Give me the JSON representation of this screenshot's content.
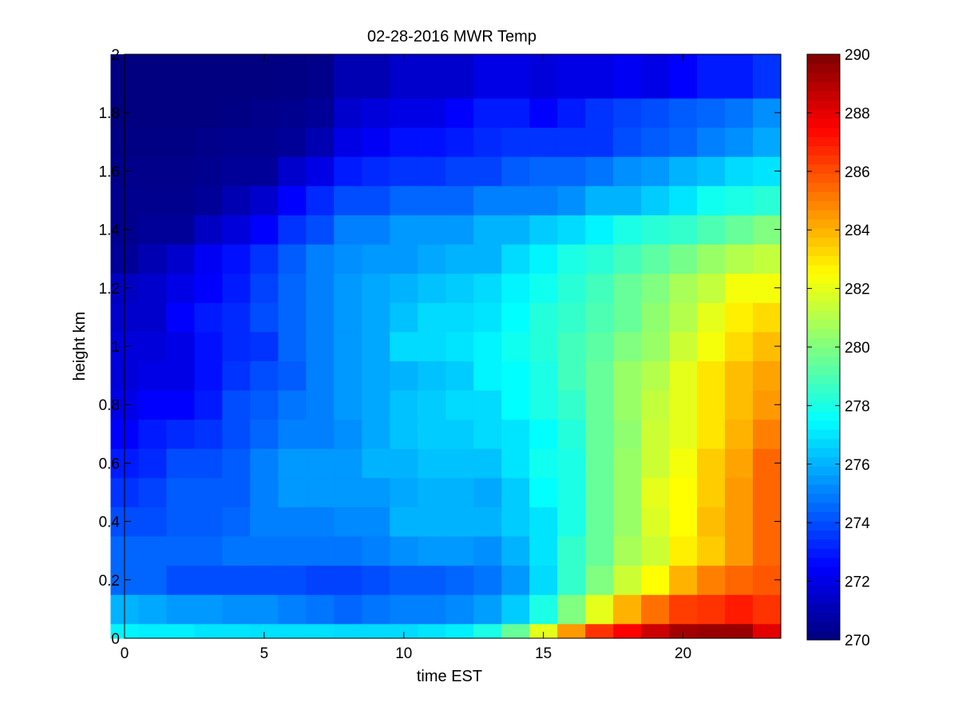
{
  "chart_data": {
    "type": "heatmap",
    "title": "02-28-2016 MWR Temp",
    "xlabel": "time EST",
    "ylabel": "height km",
    "xlim": [
      0,
      23.5
    ],
    "ylim": [
      0,
      2
    ],
    "x_ticks": [
      "0",
      "5",
      "10",
      "15",
      "20"
    ],
    "y_ticks": [
      "0",
      "0.2",
      "0.4",
      "0.6",
      "0.8",
      "1",
      "1.2",
      "1.4",
      "1.6",
      "1.8",
      "2"
    ],
    "colorbar": {
      "colormap": "jet",
      "range": [
        270,
        290
      ],
      "ticks": [
        "270",
        "272",
        "274",
        "276",
        "278",
        "280",
        "282",
        "284",
        "286",
        "288",
        "290"
      ]
    },
    "x_centers": [
      0,
      1,
      2,
      3,
      4,
      5,
      6,
      7,
      8,
      9,
      10,
      11,
      12,
      13,
      14,
      15,
      16,
      17,
      18,
      19,
      20,
      21,
      22,
      23
    ],
    "y_edges": [
      0,
      0.05,
      0.15,
      0.25,
      0.35,
      0.45,
      0.55,
      0.65,
      0.75,
      0.85,
      0.95,
      1.05,
      1.15,
      1.25,
      1.35,
      1.45,
      1.55,
      1.65,
      1.75,
      1.85,
      2.0
    ],
    "z": [
      [
        277.3,
        277.2,
        277.2,
        277.0,
        277.0,
        276.9,
        276.9,
        276.9,
        276.8,
        276.8,
        276.8,
        277.0,
        277.2,
        278.0,
        279.5,
        282.0,
        284.5,
        286.5,
        287.5,
        288.5,
        289.3,
        289.5,
        289.5,
        288.0
      ],
      [
        276.0,
        275.8,
        275.5,
        275.5,
        275.3,
        275.3,
        275.0,
        274.8,
        274.5,
        274.8,
        275.0,
        275.0,
        275.2,
        275.6,
        276.5,
        278.0,
        280.0,
        282.0,
        284.0,
        285.3,
        286.3,
        286.5,
        287.0,
        286.5
      ],
      [
        274.5,
        274.5,
        274.0,
        274.0,
        274.0,
        274.0,
        274.0,
        273.8,
        273.8,
        274.0,
        274.3,
        274.3,
        274.5,
        274.8,
        275.5,
        276.8,
        278.5,
        280.0,
        281.5,
        282.5,
        284.0,
        285.0,
        285.5,
        285.8
      ],
      [
        274.5,
        274.5,
        274.5,
        274.5,
        274.8,
        274.8,
        274.8,
        274.8,
        274.8,
        275.0,
        275.3,
        275.5,
        275.5,
        275.3,
        276.0,
        277.0,
        278.5,
        279.5,
        280.8,
        281.5,
        282.8,
        283.5,
        284.5,
        285.5
      ],
      [
        274.0,
        274.0,
        274.3,
        274.3,
        274.5,
        275.0,
        275.0,
        275.0,
        275.2,
        275.2,
        276.0,
        276.0,
        276.0,
        276.0,
        276.5,
        277.0,
        278.0,
        279.5,
        280.5,
        281.8,
        282.5,
        283.8,
        284.5,
        285.5
      ],
      [
        273.5,
        273.8,
        274.3,
        274.3,
        274.3,
        275.0,
        275.5,
        275.5,
        275.5,
        275.5,
        275.8,
        276.0,
        276.0,
        275.8,
        276.5,
        277.5,
        278.0,
        279.5,
        280.5,
        282.0,
        282.5,
        283.5,
        284.5,
        285.5
      ],
      [
        273.0,
        273.3,
        274.0,
        274.0,
        274.3,
        275.0,
        275.5,
        275.5,
        275.5,
        276.0,
        276.0,
        276.3,
        276.3,
        276.3,
        277.0,
        277.8,
        278.0,
        279.5,
        280.5,
        281.5,
        282.3,
        283.5,
        284.3,
        285.5
      ],
      [
        272.5,
        273.0,
        273.3,
        273.5,
        274.0,
        274.5,
        275.0,
        275.0,
        275.3,
        275.8,
        276.3,
        276.5,
        276.5,
        276.8,
        277.0,
        277.5,
        278.2,
        279.5,
        280.3,
        281.5,
        282.0,
        283.0,
        284.0,
        285.0
      ],
      [
        272.0,
        272.5,
        272.5,
        273.0,
        274.0,
        274.3,
        274.8,
        275.0,
        275.5,
        275.8,
        276.3,
        276.5,
        276.8,
        276.8,
        277.5,
        278.0,
        278.5,
        279.5,
        280.5,
        281.3,
        282.0,
        283.0,
        283.8,
        284.5
      ],
      [
        271.8,
        272.0,
        272.0,
        272.8,
        273.5,
        274.0,
        274.3,
        275.0,
        275.5,
        275.8,
        276.0,
        276.3,
        276.5,
        277.3,
        277.5,
        278.0,
        278.8,
        279.5,
        280.5,
        281.0,
        282.0,
        283.0,
        283.8,
        284.3
      ],
      [
        271.8,
        271.8,
        272.0,
        272.8,
        273.3,
        273.5,
        274.5,
        275.0,
        275.5,
        275.8,
        276.8,
        276.8,
        277.0,
        277.3,
        277.8,
        278.2,
        278.8,
        279.3,
        280.0,
        280.5,
        281.5,
        282.3,
        283.2,
        283.8
      ],
      [
        271.5,
        271.5,
        272.5,
        273.0,
        273.3,
        274.0,
        274.5,
        275.0,
        275.5,
        275.8,
        276.3,
        276.8,
        276.8,
        277.0,
        277.5,
        278.2,
        278.5,
        279.0,
        279.5,
        280.3,
        281.0,
        282.0,
        282.8,
        283.2
      ],
      [
        271.3,
        271.5,
        272.0,
        272.5,
        273.0,
        273.8,
        274.5,
        275.0,
        275.5,
        275.8,
        276.0,
        276.3,
        276.5,
        276.8,
        277.3,
        277.8,
        278.3,
        278.8,
        279.5,
        280.0,
        280.8,
        281.3,
        282.3,
        282.3
      ],
      [
        270.5,
        271.0,
        271.5,
        272.3,
        272.8,
        273.5,
        274.3,
        275.0,
        275.3,
        275.5,
        275.5,
        275.8,
        276.0,
        276.0,
        276.8,
        277.3,
        278.0,
        278.3,
        278.8,
        279.3,
        279.8,
        280.5,
        281.0,
        281.3
      ],
      [
        270.3,
        270.5,
        270.5,
        271.3,
        271.8,
        272.5,
        273.5,
        274.0,
        275.0,
        275.0,
        275.5,
        275.5,
        275.5,
        276.0,
        276.0,
        276.5,
        276.8,
        277.3,
        278.0,
        278.3,
        278.5,
        279.0,
        279.5,
        280.0
      ],
      [
        270.3,
        270.3,
        270.3,
        270.5,
        271.0,
        271.5,
        272.5,
        273.3,
        274.0,
        274.0,
        274.5,
        274.5,
        274.5,
        275.0,
        275.0,
        275.0,
        275.3,
        276.0,
        276.0,
        276.5,
        277.0,
        277.8,
        278.0,
        278.3
      ],
      [
        270.2,
        270.2,
        270.2,
        270.3,
        270.5,
        270.5,
        271.5,
        272.0,
        273.0,
        273.3,
        273.5,
        273.5,
        273.8,
        273.8,
        274.3,
        274.5,
        274.5,
        274.8,
        275.3,
        275.5,
        276.0,
        276.3,
        276.8,
        277.0
      ],
      [
        270.1,
        270.1,
        270.1,
        270.2,
        270.3,
        270.3,
        270.5,
        271.0,
        272.0,
        272.3,
        272.8,
        272.8,
        273.0,
        273.3,
        273.5,
        273.5,
        273.5,
        273.5,
        274.0,
        274.3,
        274.5,
        275.0,
        275.3,
        275.8
      ],
      [
        270.0,
        270.0,
        270.0,
        270.0,
        270.1,
        270.2,
        270.3,
        270.5,
        271.5,
        271.8,
        272.0,
        272.0,
        272.5,
        273.0,
        273.0,
        272.5,
        273.0,
        273.5,
        273.8,
        274.0,
        274.3,
        274.5,
        274.8,
        275.3
      ],
      [
        270.0,
        270.0,
        270.0,
        270.0,
        270.0,
        270.0,
        270.1,
        270.2,
        271.0,
        271.0,
        271.5,
        271.5,
        271.5,
        272.0,
        272.0,
        271.8,
        272.0,
        272.0,
        272.3,
        272.0,
        272.5,
        273.0,
        273.0,
        273.5
      ]
    ]
  }
}
